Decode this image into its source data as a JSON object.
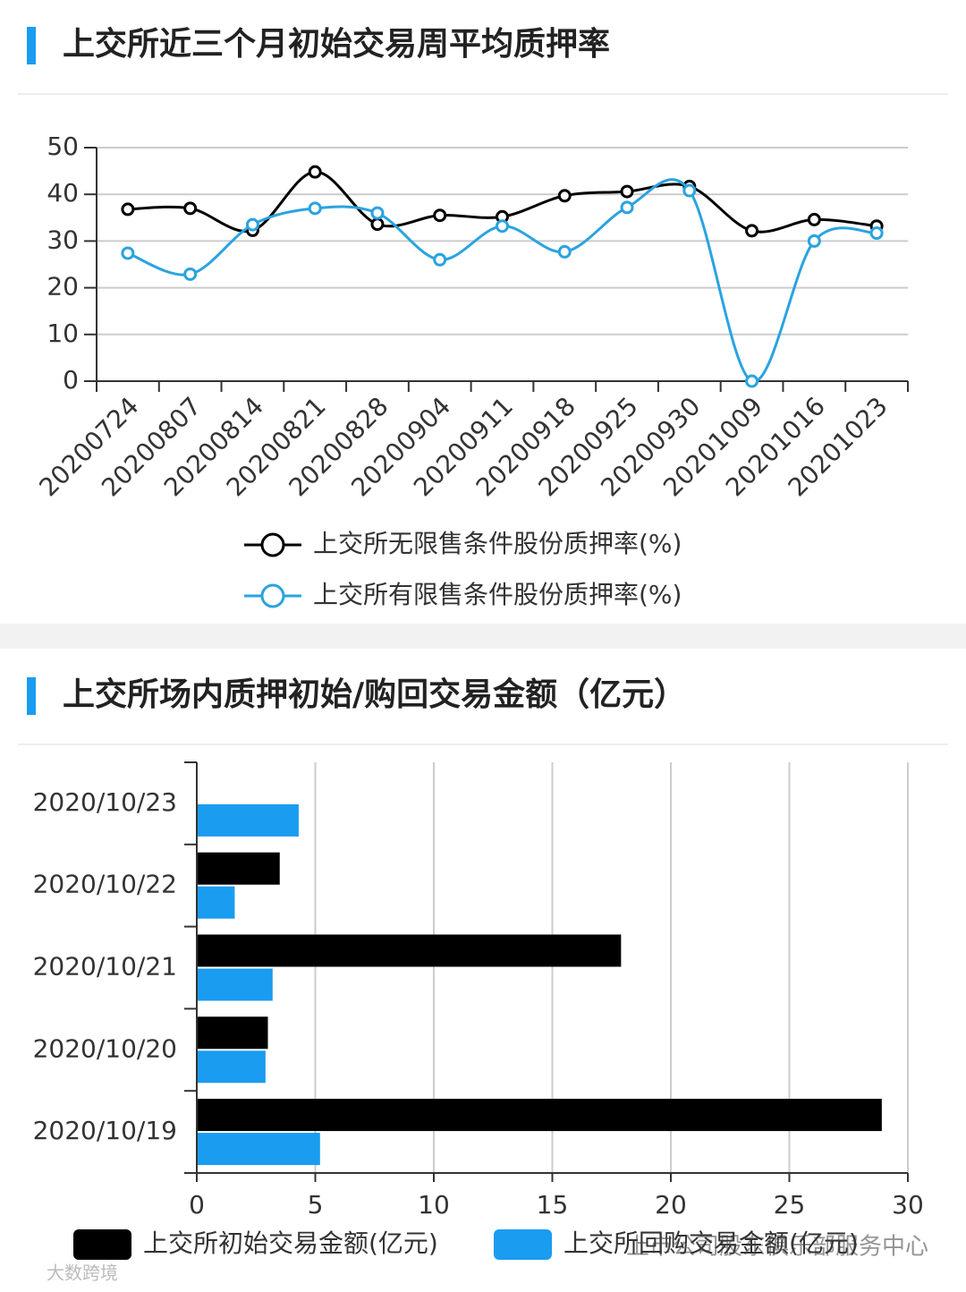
{
  "watermarks": [
    "大数跨境",
    "上市公司股东俱乐部服务中心"
  ],
  "chart_data": [
    {
      "type": "line",
      "title": "上交所近三个月初始交易周平均质押率",
      "categories": [
        "20200724",
        "20200807",
        "20200814",
        "20200821",
        "20200828",
        "20200904",
        "20200911",
        "20200918",
        "20200925",
        "20200930",
        "20201009",
        "20201016",
        "20201023"
      ],
      "series": [
        {
          "name": "上交所无限售条件股份质押率(%)",
          "color": "#000000",
          "values": [
            36.8,
            37,
            32.3,
            44.8,
            33.6,
            35.5,
            35.2,
            39.7,
            40.6,
            41.7,
            32.2,
            34.6,
            33.2
          ]
        },
        {
          "name": "上交所有限售条件股份质押率(%)",
          "color": "#2aa3e0",
          "values": [
            27.4,
            22.9,
            33.5,
            37,
            36,
            26,
            33.2,
            27.7,
            37.2,
            40.8,
            0,
            30,
            31.7
          ]
        }
      ],
      "ylim": [
        0,
        50
      ],
      "yticks": [
        0,
        10,
        20,
        30,
        40,
        50
      ],
      "grid": true,
      "smooth": true
    },
    {
      "type": "bar",
      "orientation": "horizontal",
      "title": "上交所场内质押初始/购回交易金额（亿元）",
      "categories": [
        "2020/10/23",
        "2020/10/22",
        "2020/10/21",
        "2020/10/20",
        "2020/10/19"
      ],
      "series": [
        {
          "name": "上交所初始交易金额(亿元)",
          "color": "#000000",
          "values": [
            0,
            3.5,
            17.9,
            3.0,
            28.9
          ]
        },
        {
          "name": "上交所回购交易金额(亿元)",
          "color": "#1a9cf0",
          "values": [
            4.3,
            1.6,
            3.2,
            2.9,
            5.2
          ]
        }
      ],
      "xlim": [
        0,
        30
      ],
      "xticks": [
        0,
        5,
        10,
        15,
        20,
        25,
        30
      ],
      "grid": true
    }
  ]
}
